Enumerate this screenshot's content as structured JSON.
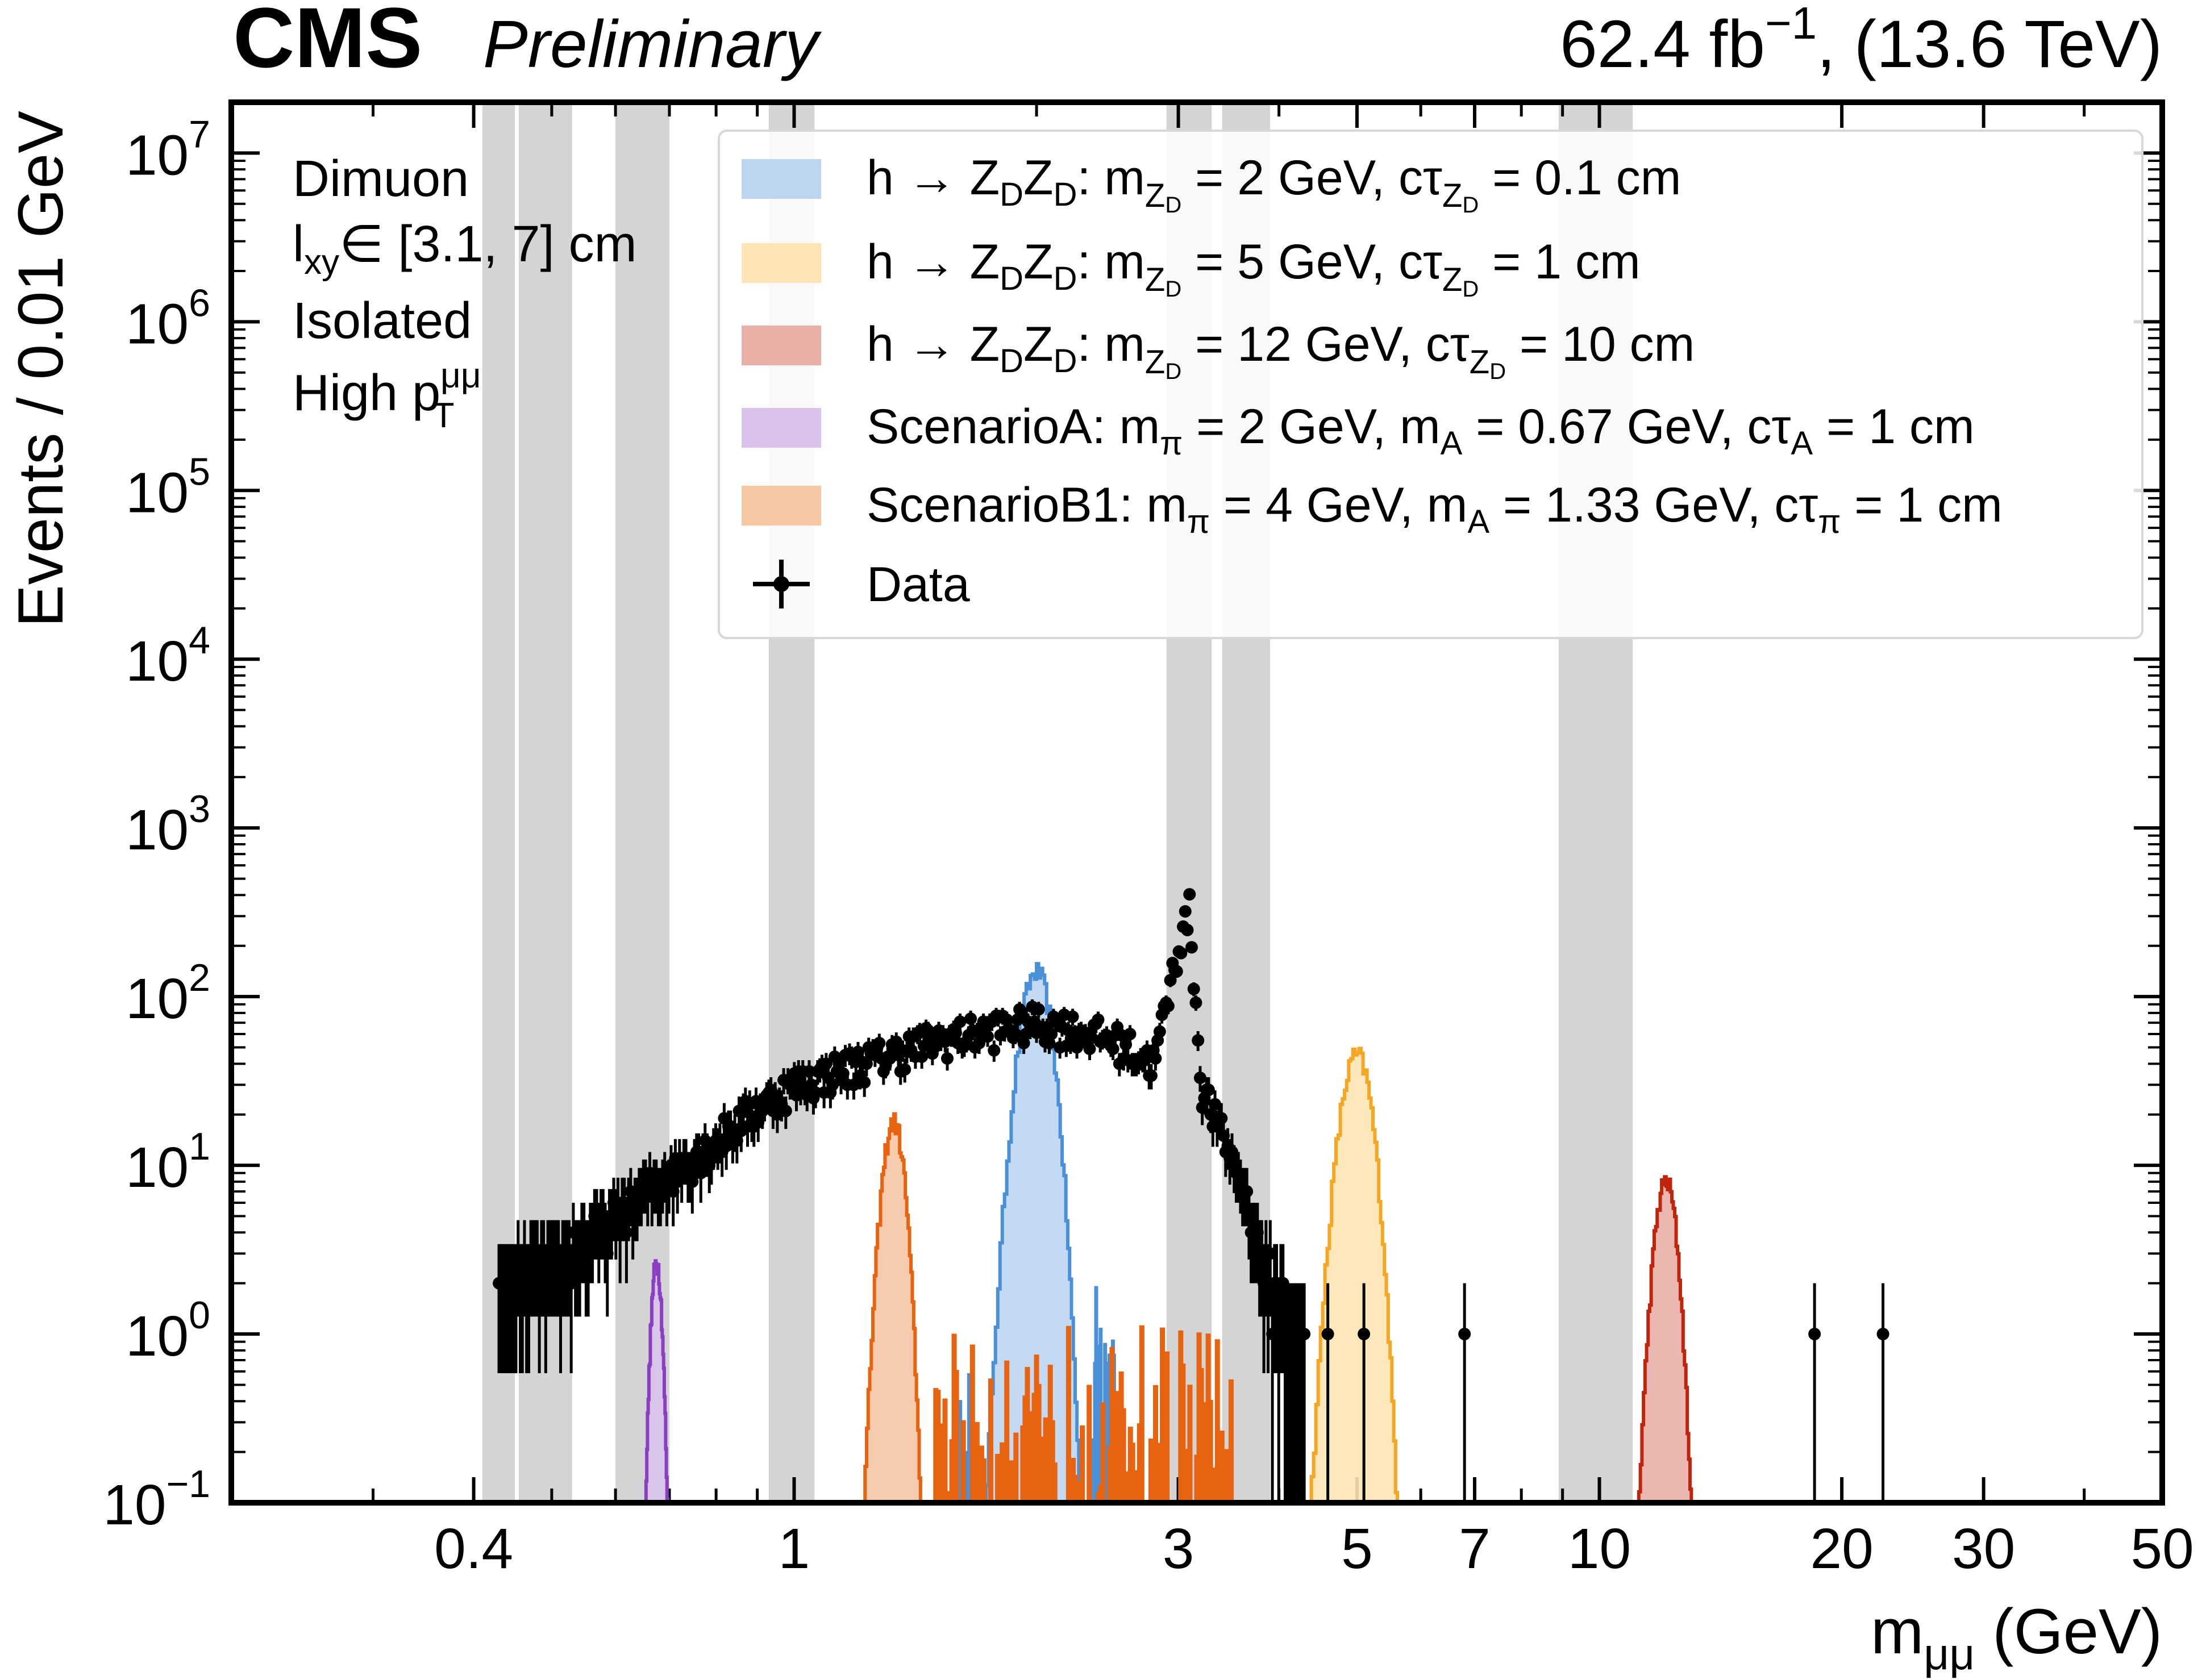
{
  "header": {
    "experiment": "CMS",
    "status": "Preliminary",
    "lumi": "62.4",
    "lumi_unit": "fb",
    "lumi_exp": "−1",
    "energy": "(13.6 TeV)"
  },
  "selection_labels": {
    "line1": "Dimuon",
    "line2_pre": "l",
    "line2_sub": "xy",
    "line2_post": "∈ [3.1, 7] cm",
    "line3": "Isolated",
    "line4_pre": "High p",
    "line4_sup": "μμ",
    "line4_sub": "T"
  },
  "legend": {
    "entries": [
      {
        "pre": "h → Z",
        "sub1": "D",
        "mid1": "Z",
        "sub2": "D",
        "mid2": ": m",
        "sub3": "Z",
        "sub3b": "D",
        "post1": " = 2 GeV, cτ",
        "sub4": "Z",
        "sub4b": "D",
        "post2": " =  0.1 cm"
      },
      {
        "pre": "h → Z",
        "sub1": "D",
        "mid1": "Z",
        "sub2": "D",
        "mid2": ": m",
        "sub3": "Z",
        "sub3b": "D",
        "post1": " = 5 GeV, cτ",
        "sub4": "Z",
        "sub4b": "D",
        "post2": " =  1 cm"
      },
      {
        "pre": "h → Z",
        "sub1": "D",
        "mid1": "Z",
        "sub2": "D",
        "mid2": ": m",
        "sub3": "Z",
        "sub3b": "D",
        "post1": " = 12 GeV, cτ",
        "sub4": "Z",
        "sub4b": "D",
        "post2": " =  10 cm"
      }
    ],
    "scenarioA": {
      "pre": "ScenarioA: m",
      "s1": "π",
      "m1": " = 2 GeV, m",
      "s2": "A",
      "m2": " = 0.67 GeV, cτ",
      "s3": "A",
      "post": " =  1 cm"
    },
    "scenarioB1": {
      "pre": "ScenarioB1: m",
      "s1": "π",
      "m1": " = 4 GeV, m",
      "s2": "A",
      "m2": " = 1.33 GeV, cτ",
      "s3": "π",
      "post": " =  1 cm"
    },
    "data_label": "Data"
  },
  "chart_data": {
    "type": "histogram",
    "xlabel_pre": "m",
    "xlabel_sub": "μμ",
    "xlabel_post": " (GeV)",
    "ylabel": "Events / 0.01 GeV",
    "xscale": "log",
    "yscale": "log",
    "xlim": [
      0.2,
      50
    ],
    "ylim": [
      0.1,
      20000000
    ],
    "x_ticks": [
      {
        "value": 0.4,
        "label": "0.4"
      },
      {
        "value": 1,
        "label": "1"
      },
      {
        "value": 3,
        "label": "3"
      },
      {
        "value": 5,
        "label": "5"
      },
      {
        "value": 7,
        "label": "7"
      },
      {
        "value": 10,
        "label": "10"
      },
      {
        "value": 20,
        "label": "20"
      },
      {
        "value": 30,
        "label": "30"
      },
      {
        "value": 50,
        "label": "50"
      }
    ],
    "y_ticks": [
      {
        "exp": -1,
        "base": "10",
        "sup": "−1"
      },
      {
        "exp": 0,
        "base": "10",
        "sup": "0"
      },
      {
        "exp": 1,
        "base": "10",
        "sup": "1"
      },
      {
        "exp": 2,
        "base": "10",
        "sup": "2"
      },
      {
        "exp": 3,
        "base": "10",
        "sup": "3"
      },
      {
        "exp": 4,
        "base": "10",
        "sup": "4"
      },
      {
        "exp": 5,
        "base": "10",
        "sup": "5"
      },
      {
        "exp": 6,
        "base": "10",
        "sup": "6"
      },
      {
        "exp": 7,
        "base": "10",
        "sup": "7"
      }
    ],
    "vetoed_regions_gev": [
      [
        0.41,
        0.45
      ],
      [
        0.455,
        0.53
      ],
      [
        0.6,
        0.7
      ],
      [
        0.93,
        1.06
      ],
      [
        2.9,
        3.3
      ],
      [
        3.4,
        3.9
      ],
      [
        8.9,
        11.0
      ]
    ],
    "series": [
      {
        "name": "h → ZDZD: mZD = 2 GeV, cτZD = 0.1 cm",
        "color": "#4a90d9",
        "fill": "#bcd6f1",
        "peak_x": 2.0,
        "peak_y": 140,
        "width_rel": 0.035,
        "low_tail": [
          1.6,
          2.5,
          0.5
        ]
      },
      {
        "name": "h → ZDZD: mZD = 5 GeV, cτZD = 1 cm",
        "color": "#f5a623",
        "fill": "#fde5b5",
        "peak_x": 5.0,
        "peak_y": 45,
        "width_rel": 0.035
      },
      {
        "name": "h → ZDZD: mZD = 12 GeV, cτZD = 10 cm",
        "color": "#c0250b",
        "fill": "#e9b0a8",
        "peak_x": 12.1,
        "peak_y": 8,
        "width_rel": 0.025
      },
      {
        "name": "ScenarioA: mπ = 2 GeV, mA = 0.67 GeV, cτA = 1 cm",
        "color": "#8a3fc2",
        "fill": "#d9c3ec",
        "peak_x": 0.675,
        "peak_y": 2.7,
        "width_rel": 0.012
      },
      {
        "name": "ScenarioB1: mπ = 4 GeV, mA = 1.33 GeV, cτπ = 1 cm",
        "color": "#e8630f",
        "fill": "#f6c7a5",
        "peak_x": 1.33,
        "peak_y": 18,
        "width_rel": 0.025,
        "low_tail": [
          1.4,
          3.5,
          0.3
        ]
      }
    ],
    "data": {
      "continuum_points": [
        [
          0.43,
          2
        ],
        [
          0.5,
          2.5
        ],
        [
          0.6,
          5
        ],
        [
          0.7,
          9
        ],
        [
          0.8,
          14
        ],
        [
          0.9,
          22
        ],
        [
          1.0,
          30
        ],
        [
          1.2,
          40
        ],
        [
          1.5,
          55
        ],
        [
          1.8,
          65
        ],
        [
          2.0,
          70
        ],
        [
          2.2,
          65
        ],
        [
          2.5,
          55
        ],
        [
          2.8,
          40
        ],
        [
          3.0,
          200
        ],
        [
          3.1,
          330
        ],
        [
          3.2,
          30
        ],
        [
          3.4,
          15
        ],
        [
          3.6,
          8
        ],
        [
          3.8,
          3
        ],
        [
          4.0,
          1.5
        ],
        [
          4.3,
          1
        ]
      ],
      "isolated_points": [
        [
          4.6,
          1
        ],
        [
          5.1,
          1
        ],
        [
          6.8,
          1
        ],
        [
          18.5,
          1
        ],
        [
          22.5,
          1
        ]
      ]
    },
    "legend_position": "top-right",
    "grid": false
  }
}
